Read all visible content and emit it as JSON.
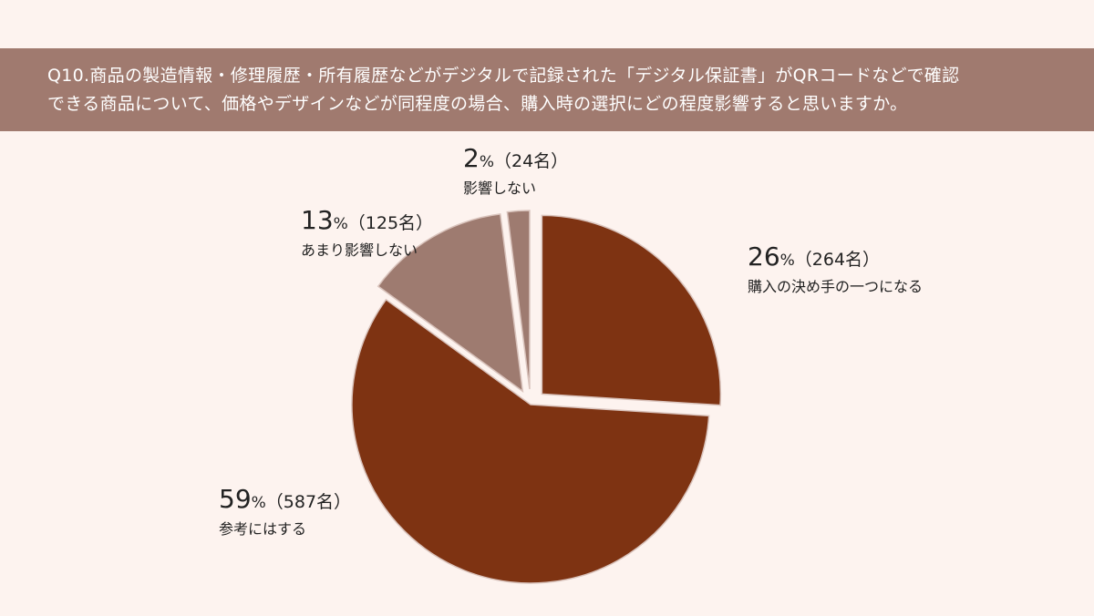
{
  "question": {
    "line1": "Q10.商品の製造情報・修理履歴・所有履歴などがデジタルで記録された「デジタル保証書」がQRコードなどで確認",
    "line2": "できる商品について、価格やデザインなどが同程度の場合、購入時の選択にどの程度影響すると思いますか。"
  },
  "colors": {
    "background": "#fdf3ef",
    "header": "#a07a6f",
    "dark_slice": "#7e3312",
    "light_slice": "#9e7b70"
  },
  "chart_data": {
    "type": "pie",
    "start_angle_deg": 0,
    "direction": "clockwise",
    "slices": [
      {
        "label": "購入の決め手の一つになる",
        "value": 26,
        "pct": "26",
        "unit": "%",
        "count": "（264名）",
        "color": "#7e3312",
        "exploded": true
      },
      {
        "label": "参考にはする",
        "value": 59,
        "pct": "59",
        "unit": "%",
        "count": "（587名）",
        "color": "#7e3312",
        "exploded": false
      },
      {
        "label": "あまり影響しない",
        "value": 13,
        "pct": "13",
        "unit": "%",
        "count": "（125名）",
        "color": "#9e7b70",
        "exploded": true
      },
      {
        "label": "影響しない",
        "value": 2,
        "pct": "2",
        "unit": "%",
        "count": "（24名）",
        "color": "#9e7b70",
        "exploded": true
      }
    ]
  }
}
